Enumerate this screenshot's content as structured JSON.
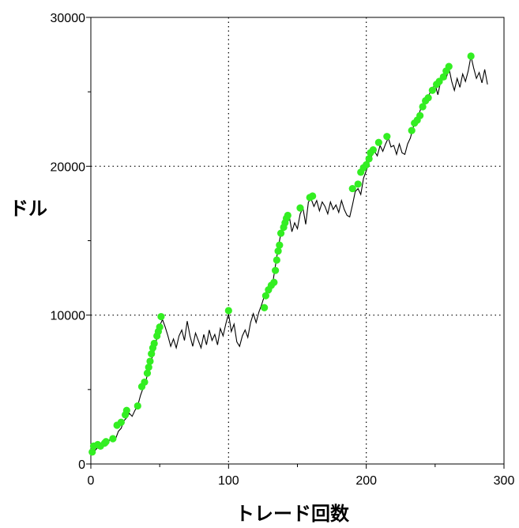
{
  "chart_data": {
    "type": "line",
    "title": "",
    "xlabel": "トレード回数",
    "ylabel": "ドル",
    "xlim": [
      0,
      300
    ],
    "ylim": [
      0,
      30000
    ],
    "x_ticks": [
      "0",
      "100",
      "200",
      "300"
    ],
    "y_ticks": [
      "0",
      "10000",
      "20000",
      "30000"
    ],
    "grid": "dotted at x=100, x=200, y=10000, y=20000",
    "legend": "none",
    "series": [
      {
        "type": "line",
        "color": "#000000",
        "points": [
          [
            0,
            600
          ],
          [
            3,
            900
          ],
          [
            5,
            1100
          ],
          [
            8,
            1300
          ],
          [
            10,
            1500
          ],
          [
            12,
            1300
          ],
          [
            14,
            1700
          ],
          [
            16,
            1600
          ],
          [
            18,
            1700
          ],
          [
            20,
            2200
          ],
          [
            22,
            2400
          ],
          [
            24,
            2900
          ],
          [
            26,
            3100
          ],
          [
            28,
            3400
          ],
          [
            30,
            3200
          ],
          [
            32,
            3600
          ],
          [
            34,
            3900
          ],
          [
            36,
            4600
          ],
          [
            38,
            5100
          ],
          [
            40,
            5600
          ],
          [
            42,
            6300
          ],
          [
            44,
            7000
          ],
          [
            46,
            7600
          ],
          [
            48,
            8500
          ],
          [
            50,
            9300
          ],
          [
            52,
            9700
          ],
          [
            54,
            9200
          ],
          [
            56,
            8600
          ],
          [
            58,
            7900
          ],
          [
            60,
            8400
          ],
          [
            62,
            7800
          ],
          [
            64,
            8600
          ],
          [
            66,
            9000
          ],
          [
            68,
            8300
          ],
          [
            70,
            9600
          ],
          [
            72,
            8600
          ],
          [
            74,
            7900
          ],
          [
            76,
            8800
          ],
          [
            78,
            8300
          ],
          [
            80,
            7800
          ],
          [
            82,
            8700
          ],
          [
            84,
            8000
          ],
          [
            86,
            9000
          ],
          [
            88,
            8300
          ],
          [
            90,
            8700
          ],
          [
            92,
            8000
          ],
          [
            94,
            9100
          ],
          [
            96,
            8600
          ],
          [
            98,
            9400
          ],
          [
            100,
            10100
          ],
          [
            102,
            8900
          ],
          [
            104,
            9400
          ],
          [
            106,
            8200
          ],
          [
            108,
            7900
          ],
          [
            110,
            8600
          ],
          [
            112,
            9000
          ],
          [
            114,
            8500
          ],
          [
            116,
            9500
          ],
          [
            118,
            10100
          ],
          [
            120,
            9500
          ],
          [
            122,
            10200
          ],
          [
            124,
            10700
          ],
          [
            126,
            11300
          ],
          [
            128,
            11700
          ],
          [
            130,
            11500
          ],
          [
            132,
            12100
          ],
          [
            134,
            13300
          ],
          [
            136,
            14500
          ],
          [
            138,
            15500
          ],
          [
            140,
            15900
          ],
          [
            142,
            16300
          ],
          [
            144,
            16700
          ],
          [
            146,
            15600
          ],
          [
            148,
            16200
          ],
          [
            150,
            15800
          ],
          [
            152,
            16800
          ],
          [
            154,
            17200
          ],
          [
            156,
            16100
          ],
          [
            158,
            17600
          ],
          [
            160,
            17800
          ],
          [
            162,
            17300
          ],
          [
            164,
            17700
          ],
          [
            166,
            17000
          ],
          [
            168,
            17600
          ],
          [
            170,
            17300
          ],
          [
            172,
            16800
          ],
          [
            174,
            17600
          ],
          [
            176,
            17100
          ],
          [
            178,
            17400
          ],
          [
            180,
            16900
          ],
          [
            182,
            17700
          ],
          [
            184,
            17100
          ],
          [
            186,
            16700
          ],
          [
            188,
            16600
          ],
          [
            190,
            17400
          ],
          [
            192,
            18300
          ],
          [
            194,
            18500
          ],
          [
            196,
            18100
          ],
          [
            198,
            19200
          ],
          [
            200,
            19700
          ],
          [
            202,
            20300
          ],
          [
            204,
            20700
          ],
          [
            206,
            21000
          ],
          [
            208,
            20700
          ],
          [
            210,
            21400
          ],
          [
            212,
            21000
          ],
          [
            214,
            21500
          ],
          [
            216,
            21900
          ],
          [
            218,
            21300
          ],
          [
            220,
            21400
          ],
          [
            222,
            20800
          ],
          [
            224,
            21500
          ],
          [
            226,
            20900
          ],
          [
            228,
            20800
          ],
          [
            230,
            21500
          ],
          [
            232,
            21900
          ],
          [
            234,
            22600
          ],
          [
            236,
            23000
          ],
          [
            238,
            23400
          ],
          [
            240,
            24000
          ],
          [
            242,
            24400
          ],
          [
            244,
            24300
          ],
          [
            246,
            24900
          ],
          [
            248,
            25200
          ],
          [
            250,
            25500
          ],
          [
            252,
            24800
          ],
          [
            254,
            25700
          ],
          [
            256,
            26200
          ],
          [
            258,
            25900
          ],
          [
            260,
            26600
          ],
          [
            262,
            25700
          ],
          [
            264,
            25100
          ],
          [
            266,
            25900
          ],
          [
            268,
            25300
          ],
          [
            270,
            26200
          ],
          [
            272,
            25700
          ],
          [
            274,
            26400
          ],
          [
            276,
            27400
          ],
          [
            278,
            26600
          ],
          [
            280,
            25900
          ],
          [
            282,
            26300
          ],
          [
            284,
            25600
          ],
          [
            286,
            26500
          ],
          [
            288,
            25500
          ]
        ]
      },
      {
        "type": "scatter",
        "color": "#33ee22",
        "points": [
          [
            1,
            800
          ],
          [
            2,
            1200
          ],
          [
            5,
            1300
          ],
          [
            7,
            1200
          ],
          [
            10,
            1400
          ],
          [
            11,
            1500
          ],
          [
            16,
            1700
          ],
          [
            19,
            2600
          ],
          [
            22,
            2800
          ],
          [
            25,
            3300
          ],
          [
            26,
            3600
          ],
          [
            34,
            3900
          ],
          [
            37,
            5200
          ],
          [
            39,
            5500
          ],
          [
            41,
            6100
          ],
          [
            42,
            6500
          ],
          [
            43,
            6900
          ],
          [
            44,
            7400
          ],
          [
            45,
            7800
          ],
          [
            46,
            8100
          ],
          [
            48,
            8600
          ],
          [
            49,
            8900
          ],
          [
            50,
            9200
          ],
          [
            51,
            9900
          ],
          [
            100,
            10300
          ],
          [
            126,
            10500
          ],
          [
            127,
            11300
          ],
          [
            129,
            11700
          ],
          [
            131,
            12000
          ],
          [
            133,
            12200
          ],
          [
            134,
            13000
          ],
          [
            135,
            13700
          ],
          [
            136,
            14300
          ],
          [
            137,
            14700
          ],
          [
            138,
            15500
          ],
          [
            140,
            15900
          ],
          [
            141,
            16200
          ],
          [
            142,
            16500
          ],
          [
            143,
            16700
          ],
          [
            152,
            17200
          ],
          [
            159,
            17900
          ],
          [
            161,
            18000
          ],
          [
            190,
            18500
          ],
          [
            194,
            18800
          ],
          [
            196,
            19600
          ],
          [
            198,
            19900
          ],
          [
            200,
            20100
          ],
          [
            202,
            20500
          ],
          [
            203,
            20900
          ],
          [
            205,
            21100
          ],
          [
            209,
            21600
          ],
          [
            215,
            22000
          ],
          [
            233,
            22400
          ],
          [
            235,
            22900
          ],
          [
            237,
            23100
          ],
          [
            239,
            23400
          ],
          [
            241,
            24000
          ],
          [
            243,
            24400
          ],
          [
            245,
            24600
          ],
          [
            248,
            25100
          ],
          [
            251,
            25500
          ],
          [
            253,
            25700
          ],
          [
            256,
            26000
          ],
          [
            258,
            26400
          ],
          [
            260,
            26700
          ],
          [
            276,
            27400
          ]
        ]
      }
    ]
  }
}
